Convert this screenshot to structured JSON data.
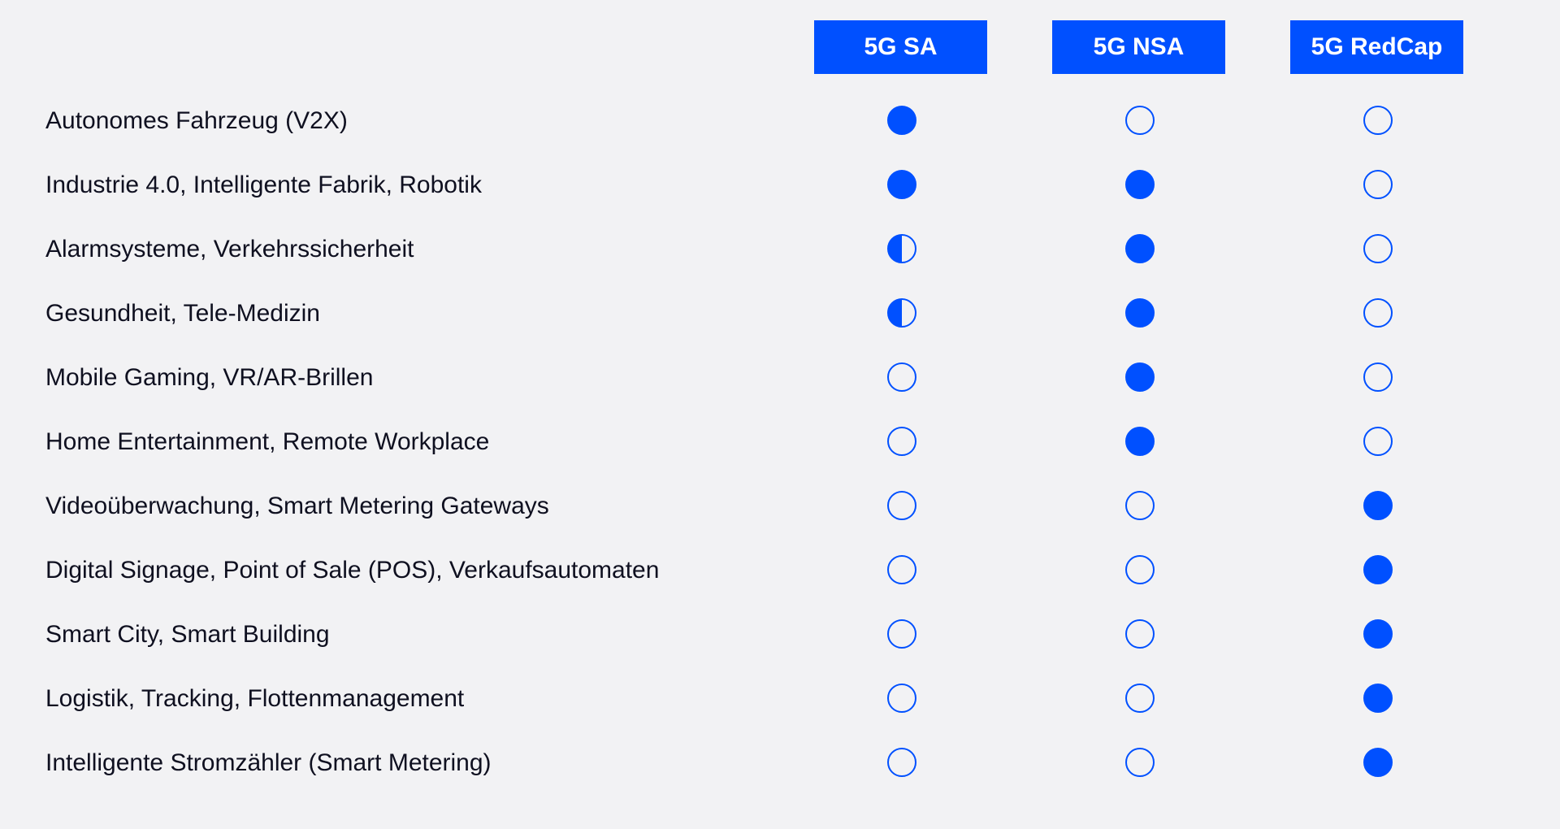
{
  "columns": [
    "5G SA",
    "5G NSA",
    "5G RedCap"
  ],
  "colors": {
    "accent": "#0050ff",
    "background": "#f2f2f4",
    "text": "#0f1020"
  },
  "legend_values": {
    "full": "fully supported (filled circle)",
    "half": "partially supported (half-filled circle)",
    "empty": "not supported (empty circle)"
  },
  "rows": [
    {
      "label": "Autonomes Fahrzeug (V2X)",
      "support": [
        "full",
        "empty",
        "empty"
      ]
    },
    {
      "label": "Industrie 4.0, Intelligente Fabrik, Robotik",
      "support": [
        "full",
        "full",
        "empty"
      ]
    },
    {
      "label": "Alarmsysteme, Verkehrssicherheit",
      "support": [
        "half",
        "full",
        "empty"
      ]
    },
    {
      "label": "Gesundheit, Tele-Medizin",
      "support": [
        "half",
        "full",
        "empty"
      ]
    },
    {
      "label": "Mobile Gaming, VR/AR-Brillen",
      "support": [
        "empty",
        "full",
        "empty"
      ]
    },
    {
      "label": "Home Entertainment, Remote Workplace",
      "support": [
        "empty",
        "full",
        "empty"
      ]
    },
    {
      "label": "Videoüberwachung, Smart Metering Gateways",
      "support": [
        "empty",
        "empty",
        "full"
      ]
    },
    {
      "label": "Digital Signage, Point of Sale (POS), Verkaufsautomaten",
      "support": [
        "empty",
        "empty",
        "full"
      ]
    },
    {
      "label": "Smart City, Smart Building",
      "support": [
        "empty",
        "empty",
        "full"
      ]
    },
    {
      "label": "Logistik, Tracking, Flottenmanagement",
      "support": [
        "empty",
        "empty",
        "full"
      ]
    },
    {
      "label": "Intelligente Stromzähler (Smart Metering)",
      "support": [
        "empty",
        "empty",
        "full"
      ]
    }
  ]
}
